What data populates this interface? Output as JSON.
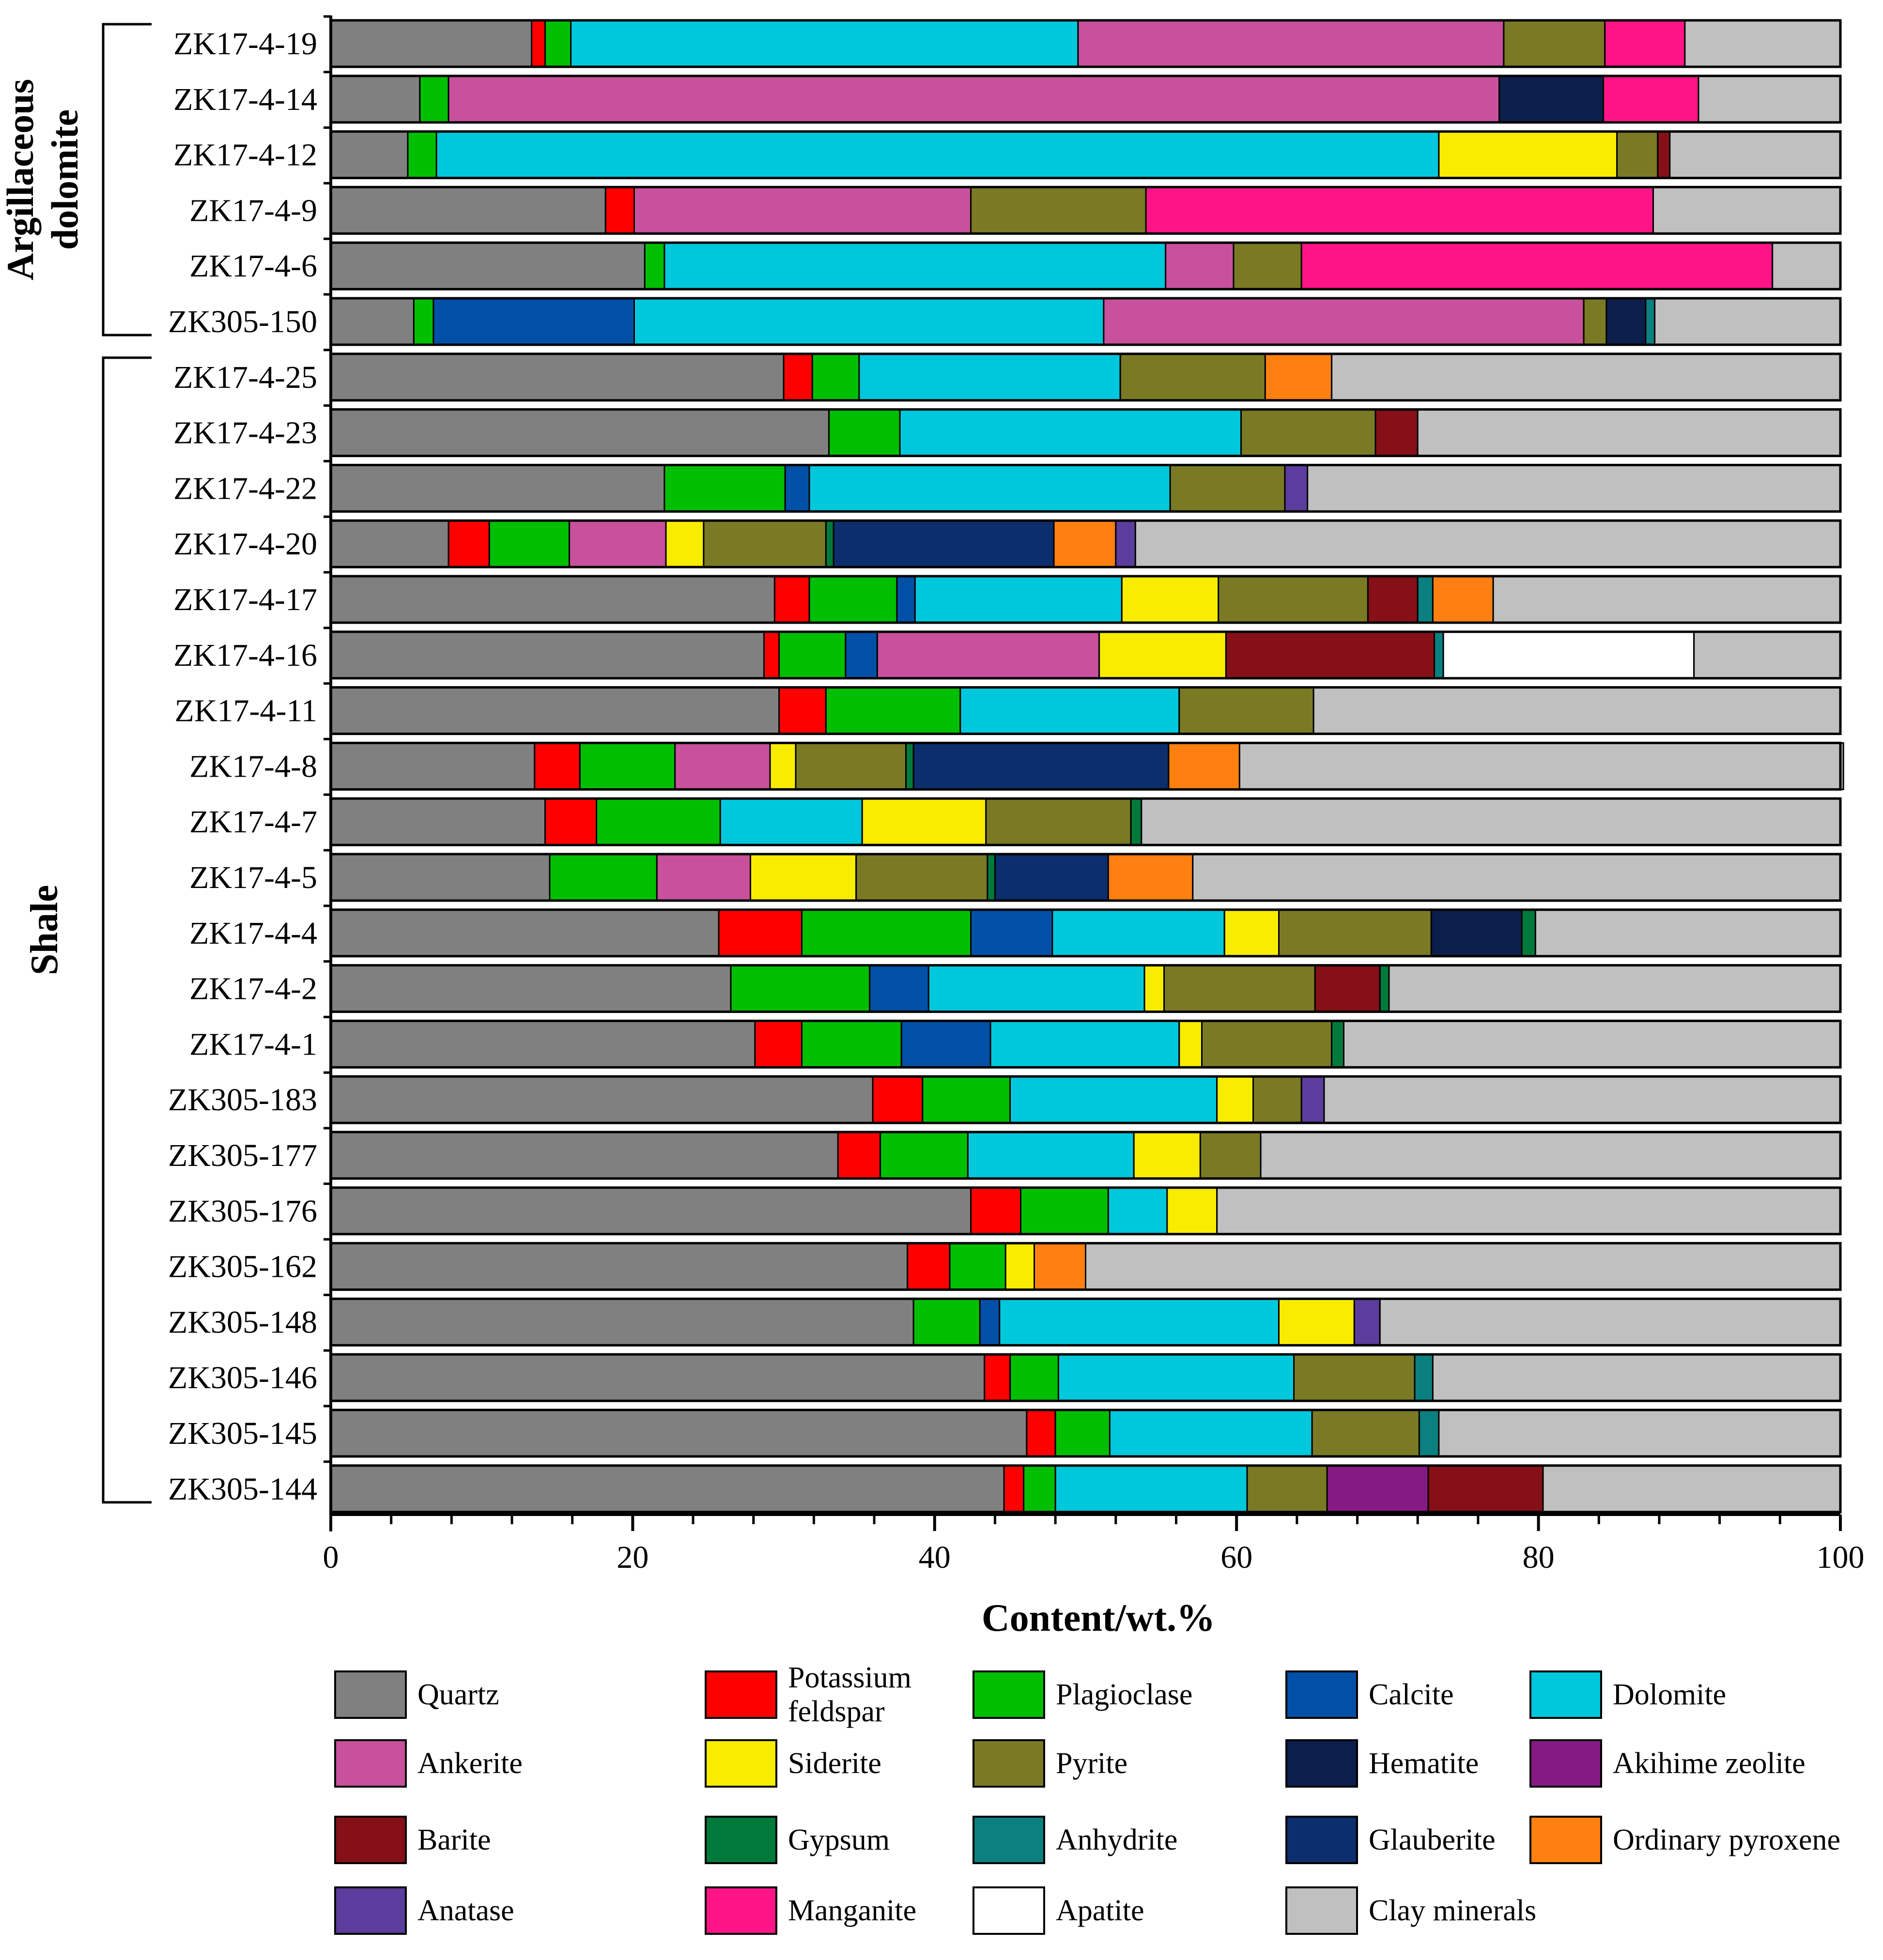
{
  "chart_data": {
    "type": "bar",
    "orientation": "horizontal",
    "stacked": true,
    "xlabel": "Content/wt.%",
    "xlim": [
      0,
      100
    ],
    "xticks": [
      0,
      20,
      40,
      60,
      80,
      100
    ],
    "groups": [
      {
        "name": "Argillaceous dolomite",
        "samples": [
          "ZK17-4-19",
          "ZK17-4-14",
          "ZK17-4-12",
          "ZK17-4-9",
          "ZK17-4-6",
          "ZK305-150"
        ]
      },
      {
        "name": "Shale",
        "samples": [
          "ZK17-4-25",
          "ZK17-4-23",
          "ZK17-4-22",
          "ZK17-4-20",
          "ZK17-4-17",
          "ZK17-4-16",
          "ZK17-4-11",
          "ZK17-4-8",
          "ZK17-4-7",
          "ZK17-4-5",
          "ZK17-4-4",
          "ZK17-4-2",
          "ZK17-4-1",
          "ZK305-183",
          "ZK305-177",
          "ZK305-176",
          "ZK305-162",
          "ZK305-148",
          "ZK305-146",
          "ZK305-145",
          "ZK305-144"
        ]
      }
    ],
    "minerals": [
      {
        "key": "quartz",
        "name": "Quartz",
        "color": "#808080"
      },
      {
        "key": "kfs",
        "name": "Potassium feldspar",
        "color": "#ff0000"
      },
      {
        "key": "plag",
        "name": "Plagioclase",
        "color": "#00bf00"
      },
      {
        "key": "calcite",
        "name": "Calcite",
        "color": "#0050a8"
      },
      {
        "key": "dolomite",
        "name": "Dolomite",
        "color": "#00c8dc"
      },
      {
        "key": "ankerite",
        "name": "Ankerite",
        "color": "#c8509c"
      },
      {
        "key": "siderite",
        "name": "Siderite",
        "color": "#f8ec00"
      },
      {
        "key": "pyrite",
        "name": "Pyrite",
        "color": "#7a7a24"
      },
      {
        "key": "hematite",
        "name": "Hematite",
        "color": "#0c1e4c"
      },
      {
        "key": "akihime",
        "name": "Akihime zeolite",
        "color": "#861a84"
      },
      {
        "key": "barite",
        "name": "Barite",
        "color": "#861018"
      },
      {
        "key": "gypsum",
        "name": "Gypsum",
        "color": "#007a3a"
      },
      {
        "key": "anhydrite",
        "name": "Anhydrite",
        "color": "#0a8080"
      },
      {
        "key": "glauberite",
        "name": "Glauberite",
        "color": "#0c2e6c"
      },
      {
        "key": "pyroxene",
        "name": "Ordinary pyroxene",
        "color": "#ff8010"
      },
      {
        "key": "anatase",
        "name": "Anatase",
        "color": "#5c3c9c"
      },
      {
        "key": "manganite",
        "name": "Manganite",
        "color": "#ff1488"
      },
      {
        "key": "apatite",
        "name": "Apatite",
        "color": "#ffffff"
      },
      {
        "key": "clay",
        "name": "Clay minerals",
        "color": "#c0c0c0"
      }
    ],
    "samples": [
      {
        "name": "ZK17-4-19",
        "segments": [
          [
            "quartz",
            13.3
          ],
          [
            "kfs",
            0.9
          ],
          [
            "plag",
            1.7
          ],
          [
            "dolomite",
            33.6
          ],
          [
            "ankerite",
            28.2
          ],
          [
            "pyrite",
            6.7
          ],
          [
            "manganite",
            5.3
          ],
          [
            "clay",
            10.3
          ]
        ]
      },
      {
        "name": "ZK17-4-14",
        "segments": [
          [
            "quartz",
            5.9
          ],
          [
            "plag",
            1.9
          ],
          [
            "ankerite",
            69.6
          ],
          [
            "hematite",
            6.9
          ],
          [
            "manganite",
            6.3
          ],
          [
            "clay",
            9.4
          ]
        ]
      },
      {
        "name": "ZK17-4-12",
        "segments": [
          [
            "quartz",
            5.1
          ],
          [
            "plag",
            1.9
          ],
          [
            "dolomite",
            66.4
          ],
          [
            "siderite",
            11.8
          ],
          [
            "pyrite",
            2.7
          ],
          [
            "barite",
            0.8
          ],
          [
            "clay",
            11.3
          ]
        ]
      },
      {
        "name": "ZK17-4-9",
        "segments": [
          [
            "quartz",
            18.2
          ],
          [
            "kfs",
            1.9
          ],
          [
            "ankerite",
            22.3
          ],
          [
            "pyrite",
            11.6
          ],
          [
            "manganite",
            33.6
          ],
          [
            "clay",
            12.4
          ]
        ]
      },
      {
        "name": "ZK17-4-6",
        "segments": [
          [
            "quartz",
            20.8
          ],
          [
            "plag",
            1.3
          ],
          [
            "dolomite",
            33.2
          ],
          [
            "ankerite",
            4.5
          ],
          [
            "pyrite",
            4.5
          ],
          [
            "manganite",
            31.2
          ],
          [
            "clay",
            4.5
          ]
        ]
      },
      {
        "name": "ZK305-150",
        "segments": [
          [
            "quartz",
            5.5
          ],
          [
            "plag",
            1.3
          ],
          [
            "calcite",
            13.3
          ],
          [
            "dolomite",
            31.1
          ],
          [
            "ankerite",
            31.8
          ],
          [
            "pyrite",
            1.5
          ],
          [
            "hematite",
            2.6
          ],
          [
            "anhydrite",
            0.6
          ],
          [
            "clay",
            12.3
          ]
        ]
      },
      {
        "name": "ZK17-4-25",
        "segments": [
          [
            "quartz",
            30.0
          ],
          [
            "kfs",
            1.9
          ],
          [
            "plag",
            3.1
          ],
          [
            "dolomite",
            17.3
          ],
          [
            "pyrite",
            9.6
          ],
          [
            "pyroxene",
            4.4
          ],
          [
            "clay",
            33.7
          ]
        ]
      },
      {
        "name": "ZK17-4-23",
        "segments": [
          [
            "quartz",
            33.0
          ],
          [
            "plag",
            4.7
          ],
          [
            "dolomite",
            22.6
          ],
          [
            "pyrite",
            8.9
          ],
          [
            "barite",
            2.8
          ],
          [
            "clay",
            28.0
          ]
        ]
      },
      {
        "name": "ZK17-4-22",
        "segments": [
          [
            "quartz",
            22.1
          ],
          [
            "plag",
            8.0
          ],
          [
            "calcite",
            1.6
          ],
          [
            "dolomite",
            23.9
          ],
          [
            "pyrite",
            7.6
          ],
          [
            "anatase",
            1.5
          ],
          [
            "clay",
            35.3
          ]
        ]
      },
      {
        "name": "ZK17-4-20",
        "segments": [
          [
            "quartz",
            7.8
          ],
          [
            "kfs",
            2.7
          ],
          [
            "plag",
            5.3
          ],
          [
            "ankerite",
            6.4
          ],
          [
            "siderite",
            2.5
          ],
          [
            "pyrite",
            8.1
          ],
          [
            "gypsum",
            0.5
          ],
          [
            "glauberite",
            14.6
          ],
          [
            "pyroxene",
            4.1
          ],
          [
            "anatase",
            1.3
          ],
          [
            "clay",
            46.7
          ]
        ]
      },
      {
        "name": "ZK17-4-17",
        "segments": [
          [
            "quartz",
            29.4
          ],
          [
            "kfs",
            2.3
          ],
          [
            "plag",
            5.8
          ],
          [
            "calcite",
            1.2
          ],
          [
            "dolomite",
            13.7
          ],
          [
            "siderite",
            6.4
          ],
          [
            "pyrite",
            9.9
          ],
          [
            "barite",
            3.3
          ],
          [
            "anhydrite",
            1.0
          ],
          [
            "pyroxene",
            4.0
          ],
          [
            "clay",
            23.0
          ]
        ]
      },
      {
        "name": "ZK17-4-16",
        "segments": [
          [
            "quartz",
            28.7
          ],
          [
            "kfs",
            1.0
          ],
          [
            "plag",
            4.4
          ],
          [
            "calcite",
            2.1
          ],
          [
            "ankerite",
            14.7
          ],
          [
            "siderite",
            8.4
          ],
          [
            "barite",
            13.8
          ],
          [
            "anhydrite",
            0.6
          ],
          [
            "apatite",
            16.6
          ],
          [
            "clay",
            9.7
          ]
        ]
      },
      {
        "name": "ZK17-4-11",
        "segments": [
          [
            "quartz",
            29.7
          ],
          [
            "kfs",
            3.1
          ],
          [
            "plag",
            8.9
          ],
          [
            "dolomite",
            14.5
          ],
          [
            "pyrite",
            8.9
          ],
          [
            "clay",
            34.9
          ]
        ]
      },
      {
        "name": "ZK17-4-8",
        "segments": [
          [
            "quartz",
            13.5
          ],
          [
            "kfs",
            3.0
          ],
          [
            "plag",
            6.3
          ],
          [
            "ankerite",
            6.3
          ],
          [
            "siderite",
            1.7
          ],
          [
            "pyrite",
            7.3
          ],
          [
            "gypsum",
            0.5
          ],
          [
            "glauberite",
            16.9
          ],
          [
            "pyroxene",
            4.7
          ],
          [
            "clay",
            40.0
          ]
        ]
      },
      {
        "name": "ZK17-4-7",
        "segments": [
          [
            "quartz",
            14.2
          ],
          [
            "kfs",
            3.4
          ],
          [
            "plag",
            8.2
          ],
          [
            "dolomite",
            9.4
          ],
          [
            "siderite",
            8.2
          ],
          [
            "pyrite",
            9.6
          ],
          [
            "gypsum",
            0.7
          ],
          [
            "clay",
            46.3
          ]
        ]
      },
      {
        "name": "ZK17-4-5",
        "segments": [
          [
            "quartz",
            14.5
          ],
          [
            "plag",
            7.1
          ],
          [
            "ankerite",
            6.2
          ],
          [
            "siderite",
            7.0
          ],
          [
            "pyrite",
            8.7
          ],
          [
            "gypsum",
            0.5
          ],
          [
            "glauberite",
            7.5
          ],
          [
            "pyroxene",
            5.6
          ],
          [
            "clay",
            42.9
          ]
        ]
      },
      {
        "name": "ZK17-4-4",
        "segments": [
          [
            "quartz",
            25.7
          ],
          [
            "kfs",
            5.5
          ],
          [
            "plag",
            11.2
          ],
          [
            "calcite",
            5.4
          ],
          [
            "dolomite",
            11.4
          ],
          [
            "siderite",
            3.6
          ],
          [
            "pyrite",
            10.1
          ],
          [
            "hematite",
            6.0
          ],
          [
            "gypsum",
            0.9
          ],
          [
            "clay",
            20.2
          ]
        ]
      },
      {
        "name": "ZK17-4-2",
        "segments": [
          [
            "quartz",
            26.5
          ],
          [
            "plag",
            9.2
          ],
          [
            "calcite",
            3.9
          ],
          [
            "dolomite",
            14.3
          ],
          [
            "siderite",
            1.3
          ],
          [
            "pyrite",
            10.0
          ],
          [
            "barite",
            4.3
          ],
          [
            "gypsum",
            0.6
          ],
          [
            "clay",
            29.9
          ]
        ]
      },
      {
        "name": "ZK17-4-1",
        "segments": [
          [
            "quartz",
            28.1
          ],
          [
            "kfs",
            3.1
          ],
          [
            "plag",
            6.6
          ],
          [
            "calcite",
            5.9
          ],
          [
            "dolomite",
            12.5
          ],
          [
            "siderite",
            1.5
          ],
          [
            "pyrite",
            8.6
          ],
          [
            "gypsum",
            0.8
          ],
          [
            "clay",
            32.9
          ]
        ]
      },
      {
        "name": "ZK305-183",
        "segments": [
          [
            "quartz",
            35.9
          ],
          [
            "kfs",
            3.3
          ],
          [
            "plag",
            5.8
          ],
          [
            "dolomite",
            13.7
          ],
          [
            "siderite",
            2.4
          ],
          [
            "pyrite",
            3.2
          ],
          [
            "anatase",
            1.5
          ],
          [
            "clay",
            34.2
          ]
        ]
      },
      {
        "name": "ZK305-177",
        "segments": [
          [
            "quartz",
            33.6
          ],
          [
            "kfs",
            2.8
          ],
          [
            "plag",
            5.8
          ],
          [
            "dolomite",
            11.0
          ],
          [
            "siderite",
            4.4
          ],
          [
            "pyrite",
            4.0
          ],
          [
            "clay",
            38.4
          ]
        ]
      },
      {
        "name": "ZK305-176",
        "segments": [
          [
            "quartz",
            42.4
          ],
          [
            "kfs",
            3.3
          ],
          [
            "plag",
            5.8
          ],
          [
            "dolomite",
            3.9
          ],
          [
            "siderite",
            3.3
          ],
          [
            "clay",
            41.3
          ]
        ]
      },
      {
        "name": "ZK305-162",
        "segments": [
          [
            "quartz",
            38.2
          ],
          [
            "kfs",
            2.8
          ],
          [
            "plag",
            3.7
          ],
          [
            "siderite",
            1.9
          ],
          [
            "pyroxene",
            3.4
          ],
          [
            "clay",
            50.0
          ]
        ]
      },
      {
        "name": "ZK305-148",
        "segments": [
          [
            "quartz",
            38.6
          ],
          [
            "plag",
            4.4
          ],
          [
            "calcite",
            1.3
          ],
          [
            "dolomite",
            18.5
          ],
          [
            "siderite",
            5.0
          ],
          [
            "anatase",
            1.7
          ],
          [
            "clay",
            30.5
          ]
        ]
      },
      {
        "name": "ZK305-146",
        "segments": [
          [
            "quartz",
            43.3
          ],
          [
            "kfs",
            1.7
          ],
          [
            "plag",
            3.2
          ],
          [
            "dolomite",
            15.6
          ],
          [
            "pyrite",
            8.0
          ],
          [
            "anhydrite",
            1.2
          ],
          [
            "clay",
            27.0
          ]
        ]
      },
      {
        "name": "ZK305-145",
        "segments": [
          [
            "quartz",
            46.1
          ],
          [
            "kfs",
            1.9
          ],
          [
            "plag",
            3.6
          ],
          [
            "dolomite",
            13.4
          ],
          [
            "pyrite",
            7.1
          ],
          [
            "anhydrite",
            1.3
          ],
          [
            "clay",
            26.6
          ]
        ]
      },
      {
        "name": "ZK305-144",
        "segments": [
          [
            "quartz",
            44.6
          ],
          [
            "kfs",
            1.3
          ],
          [
            "plag",
            2.1
          ],
          [
            "dolomite",
            12.7
          ],
          [
            "pyrite",
            5.3
          ],
          [
            "akihime",
            6.7
          ],
          [
            "barite",
            7.6
          ],
          [
            "clay",
            19.7
          ]
        ]
      }
    ]
  },
  "legend_rows": [
    [
      "quartz",
      "kfs",
      "plag",
      "calcite",
      "dolomite"
    ],
    [
      "ankerite",
      "siderite",
      "pyrite",
      "hematite",
      "akihime"
    ],
    [
      "barite",
      "gypsum",
      "anhydrite",
      "glauberite",
      "pyroxene"
    ],
    [
      "anatase",
      "manganite",
      "apatite",
      "clay"
    ]
  ],
  "legend_labels": {
    "kfs_line1": "Potassium",
    "kfs_line2": "feldspar"
  }
}
